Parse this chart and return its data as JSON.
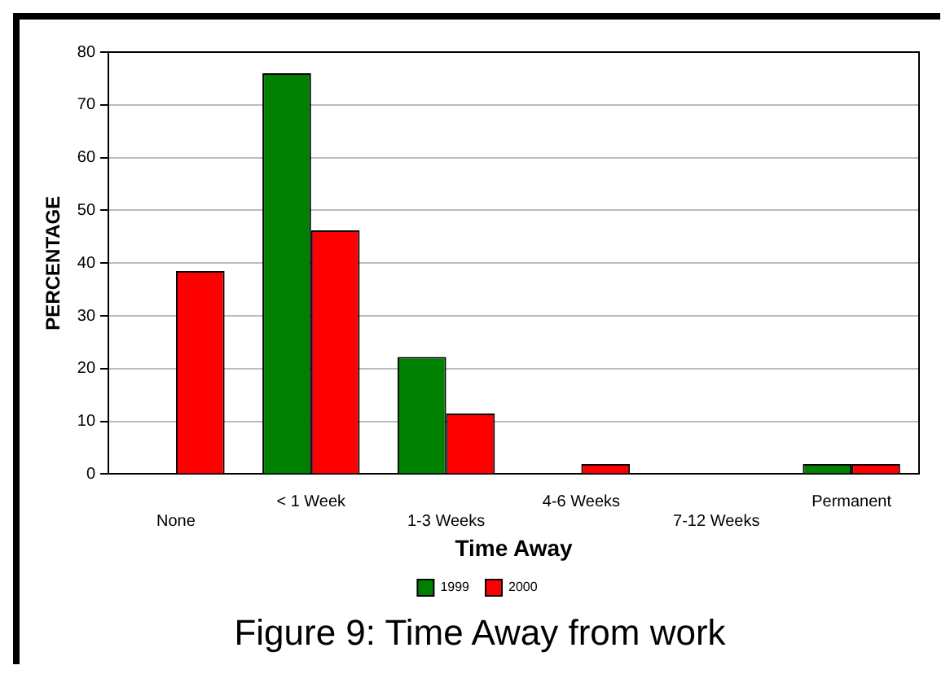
{
  "chart_data": {
    "type": "bar",
    "title": "Figure 9: Time Away from work",
    "xlabel": "Time Away",
    "ylabel": "PERCENTAGE",
    "categories": [
      "None",
      "< 1 Week",
      "1-3 Weeks",
      "4-6 Weeks",
      "7-12 Weeks",
      "Permanent"
    ],
    "series": [
      {
        "name": "1999",
        "color": "#008000",
        "values": [
          0,
          76,
          22.2,
          0,
          0,
          1.9
        ]
      },
      {
        "name": "2000",
        "color": "#ff0000",
        "values": [
          38.5,
          46.2,
          11.5,
          1.9,
          0,
          1.9
        ]
      }
    ],
    "ylim": [
      0,
      80
    ],
    "yticks": [
      0,
      10,
      20,
      30,
      40,
      50,
      60,
      70,
      80
    ],
    "grid": "y",
    "legend": "bottom"
  }
}
